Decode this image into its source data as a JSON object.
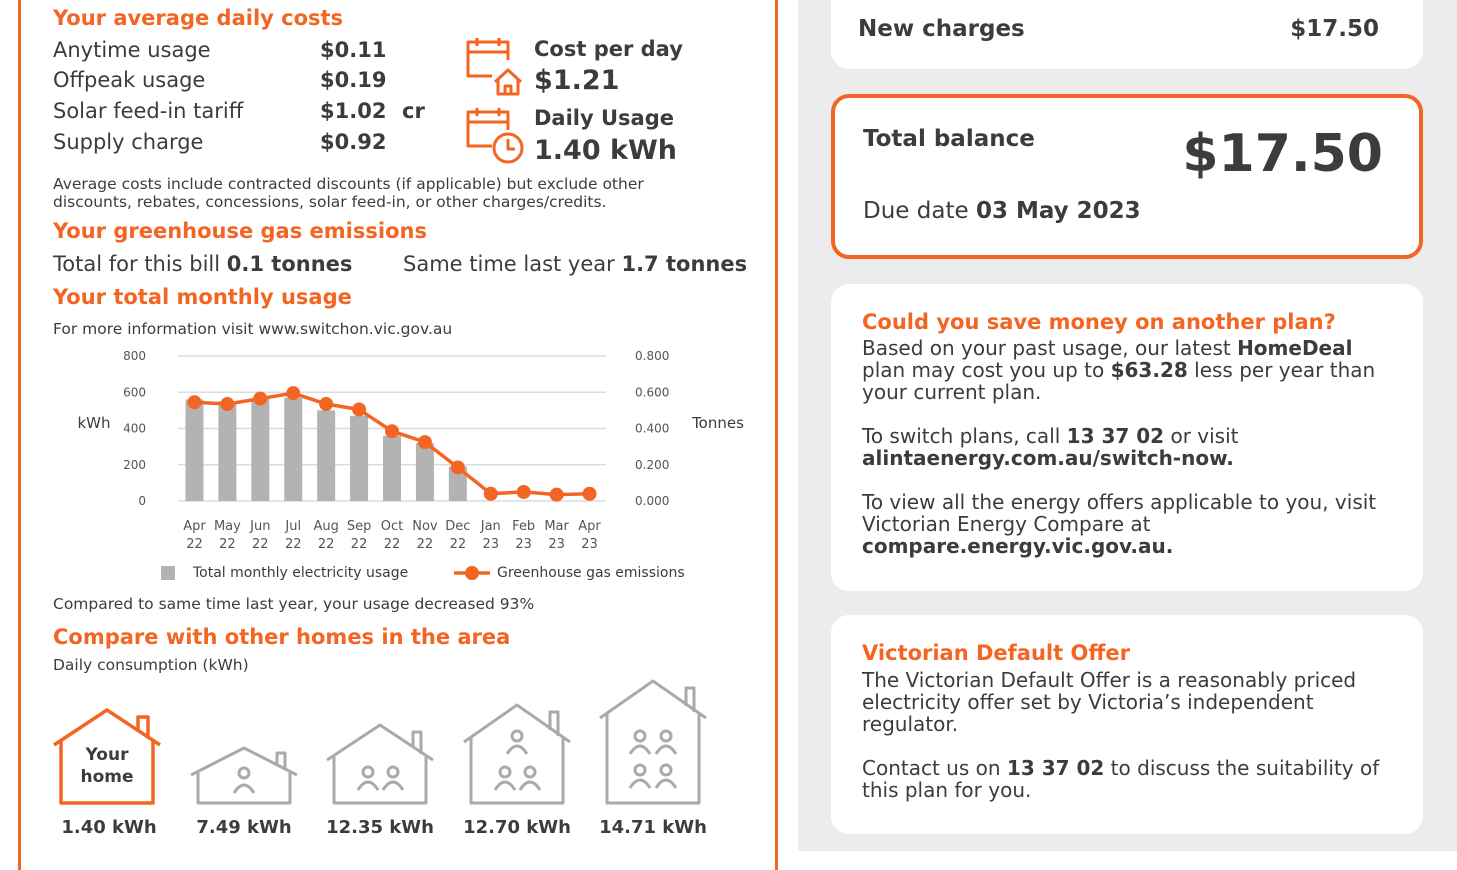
{
  "daily_costs": {
    "heading": "Your average daily costs",
    "rows": [
      {
        "label": "Anytime usage",
        "value": "$0.11",
        "suffix": ""
      },
      {
        "label": "Offpeak usage",
        "value": "$0.19",
        "suffix": ""
      },
      {
        "label": "Solar feed-in tariff",
        "value": "$1.02",
        "suffix": "cr"
      },
      {
        "label": "Supply charge",
        "value": "$0.92",
        "suffix": ""
      }
    ],
    "cost_per_day_label": "Cost per day",
    "cost_per_day_value": "$1.21",
    "daily_usage_label": "Daily Usage",
    "daily_usage_value": "1.40 kWh",
    "note": "Average costs include contracted discounts (if applicable) but exclude other discounts, rebates, concessions, solar feed-in, or other charges/credits."
  },
  "emissions": {
    "heading": "Your greenhouse gas emissions",
    "bill_label": "Total for this bill",
    "bill_value": "0.1 tonnes",
    "last_year_label": "Same time last year",
    "last_year_value": "1.7 tonnes"
  },
  "monthly": {
    "heading": "Your total monthly usage",
    "info": "For more information visit www.switchon.vic.gov.au",
    "comparison": "Compared to same time last year, your usage decreased 93%"
  },
  "chart_data": {
    "type": "bar",
    "categories": [
      [
        "Apr",
        "22"
      ],
      [
        "May",
        "22"
      ],
      [
        "Jun",
        "22"
      ],
      [
        "Jul",
        "22"
      ],
      [
        "Aug",
        "22"
      ],
      [
        "Sep",
        "22"
      ],
      [
        "Oct",
        "22"
      ],
      [
        "Nov",
        "22"
      ],
      [
        "Dec",
        "22"
      ],
      [
        "Jan",
        "23"
      ],
      [
        "Feb",
        "23"
      ],
      [
        "Mar",
        "23"
      ],
      [
        "Apr",
        "23"
      ]
    ],
    "ylabel": "kWh",
    "y2label": "Tonnes",
    "ylim": [
      0,
      800
    ],
    "y2lim": [
      0,
      0.8
    ],
    "yticks": [
      "0",
      "200",
      "400",
      "600",
      "800"
    ],
    "y2ticks": [
      "0.000",
      "0.200",
      "0.400",
      "0.600",
      "0.800"
    ],
    "series": [
      {
        "name": "Total monthly electricity usage",
        "kind": "bar",
        "color": "#b3b3b3",
        "values": [
          560,
          550,
          570,
          570,
          500,
          470,
          360,
          320,
          190,
          0,
          0,
          0,
          0
        ]
      },
      {
        "name": "Greenhouse gas emissions",
        "kind": "line",
        "axis": "right",
        "color": "#f26522",
        "values": [
          0.545,
          0.535,
          0.565,
          0.595,
          0.535,
          0.505,
          0.385,
          0.325,
          0.185,
          0.04,
          0.05,
          0.035,
          0.04
        ]
      }
    ],
    "grid": true,
    "legend": "bottom"
  },
  "compare_homes": {
    "heading": "Compare with other homes in the area",
    "subheading": "Daily consumption (kWh)",
    "your_home_label": [
      "Your",
      "home"
    ],
    "values": [
      "1.40 kWh",
      "7.49 kWh",
      "12.35 kWh",
      "12.70 kWh",
      "14.71 kWh"
    ],
    "people_counts": [
      0,
      1,
      2,
      3,
      4
    ]
  },
  "new_charges": {
    "label": "New charges",
    "value": "$17.50"
  },
  "total_balance": {
    "label": "Total balance",
    "value": "$17.50",
    "due_label": "Due date",
    "due_value": "03 May 2023"
  },
  "save_money": {
    "heading": "Could you save money on another plan?",
    "p1_a": "Based on your past usage, our latest ",
    "p1_plan": "HomeDeal",
    "p1_b": " plan may cost you up to ",
    "p1_amount": "$63.28",
    "p1_c": " less per year than your current plan.",
    "p2_a": "To switch plans, call ",
    "p2_phone": "13 37 02",
    "p2_b": " or visit",
    "p2_url": "alintaenergy.com.au/switch-now.",
    "p3_a": "To view all the energy offers applicable to you, visit Victorian Energy Compare at",
    "p3_url": "compare.energy.vic.gov.au."
  },
  "default_offer": {
    "heading": "Victorian Default Offer",
    "p1": "The Victorian Default Offer is a reasonably priced electricity offer set by Victoria’s independent regulator.",
    "p2_a": "Contact us on ",
    "p2_phone": "13 37 02",
    "p2_b": " to discuss the suitability of this plan for you."
  },
  "colors": {
    "accent": "#f26522",
    "bar": "#b3b3b3",
    "text": "#3c3c3c",
    "panel": "#ececec"
  }
}
